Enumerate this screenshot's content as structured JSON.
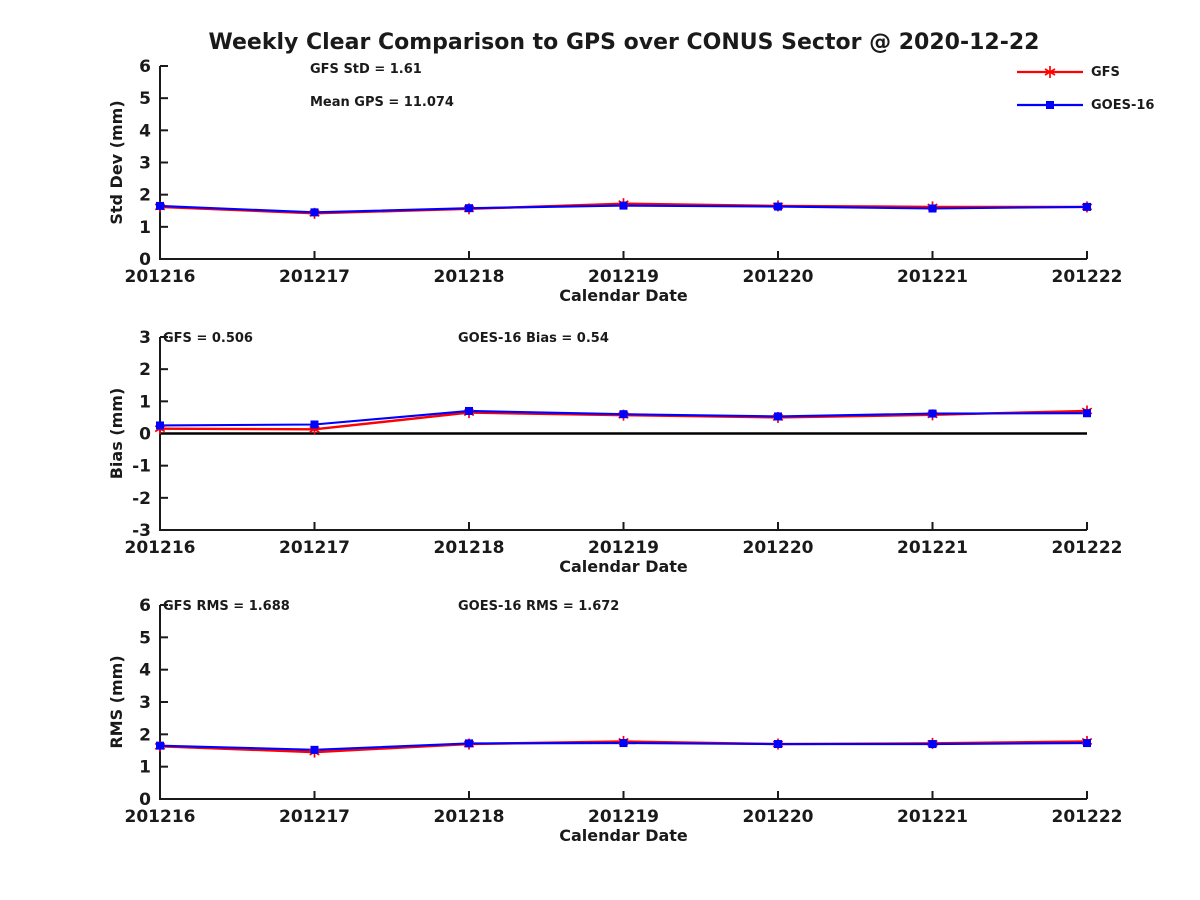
{
  "title": "Weekly Clear Comparison to GPS over CONUS Sector @ 2020-12-22",
  "colors": {
    "gfs": "#ff0000",
    "goes16": "#0000ff",
    "text": "#1a1a1a",
    "zero_line": "#000000"
  },
  "legend": {
    "items": [
      {
        "label": "GFS",
        "color": "#ff0000",
        "marker": "asterisk"
      },
      {
        "label": "GOES-16",
        "color": "#0000ff",
        "marker": "square"
      }
    ]
  },
  "chart_data": [
    {
      "type": "line",
      "title": "",
      "ylabel": "Std Dev (mm)",
      "xlabel": "Calendar Date",
      "ylim": [
        0,
        6
      ],
      "yticks": [
        0,
        1,
        2,
        3,
        4,
        5,
        6
      ],
      "grid": false,
      "categories": [
        "201216",
        "201217",
        "201218",
        "201219",
        "201220",
        "201221",
        "201222"
      ],
      "annotations": [
        "GFS StD = 1.61",
        "Mean GPS = 11.074"
      ],
      "series": [
        {
          "name": "GFS",
          "color": "#ff0000",
          "marker": "asterisk",
          "values": [
            1.62,
            1.42,
            1.56,
            1.72,
            1.65,
            1.62,
            1.62
          ]
        },
        {
          "name": "GOES-16",
          "color": "#0000ff",
          "marker": "square",
          "values": [
            1.65,
            1.45,
            1.58,
            1.66,
            1.63,
            1.57,
            1.62
          ]
        }
      ]
    },
    {
      "type": "line",
      "title": "",
      "ylabel": "Bias (mm)",
      "xlabel": "Calendar Date",
      "ylim": [
        -3,
        3
      ],
      "yticks": [
        3,
        2,
        1,
        0,
        -1,
        -2,
        -3
      ],
      "grid": false,
      "zero_line": true,
      "categories": [
        "201216",
        "201217",
        "201218",
        "201219",
        "201220",
        "201221",
        "201222"
      ],
      "annotations": [
        "GFS = 0.506",
        "GOES-16 Bias  = 0.54"
      ],
      "series": [
        {
          "name": "GFS",
          "color": "#ff0000",
          "marker": "asterisk",
          "values": [
            0.15,
            0.13,
            0.65,
            0.57,
            0.5,
            0.58,
            0.7
          ]
        },
        {
          "name": "GOES-16",
          "color": "#0000ff",
          "marker": "square",
          "values": [
            0.25,
            0.28,
            0.7,
            0.6,
            0.53,
            0.62,
            0.63
          ]
        }
      ]
    },
    {
      "type": "line",
      "title": "",
      "ylabel": "RMS (mm)",
      "xlabel": "Calendar Date",
      "ylim": [
        0,
        6
      ],
      "yticks": [
        0,
        1,
        2,
        3,
        4,
        5,
        6
      ],
      "grid": false,
      "categories": [
        "201216",
        "201217",
        "201218",
        "201219",
        "201220",
        "201221",
        "201222"
      ],
      "annotations": [
        "GFS RMS = 1.688",
        "GOES-16 RMS = 1.672"
      ],
      "series": [
        {
          "name": "GFS",
          "color": "#ff0000",
          "marker": "asterisk",
          "values": [
            1.63,
            1.45,
            1.7,
            1.78,
            1.7,
            1.72,
            1.78
          ]
        },
        {
          "name": "GOES-16",
          "color": "#0000ff",
          "marker": "square",
          "values": [
            1.65,
            1.52,
            1.72,
            1.73,
            1.7,
            1.7,
            1.73
          ]
        }
      ]
    }
  ]
}
